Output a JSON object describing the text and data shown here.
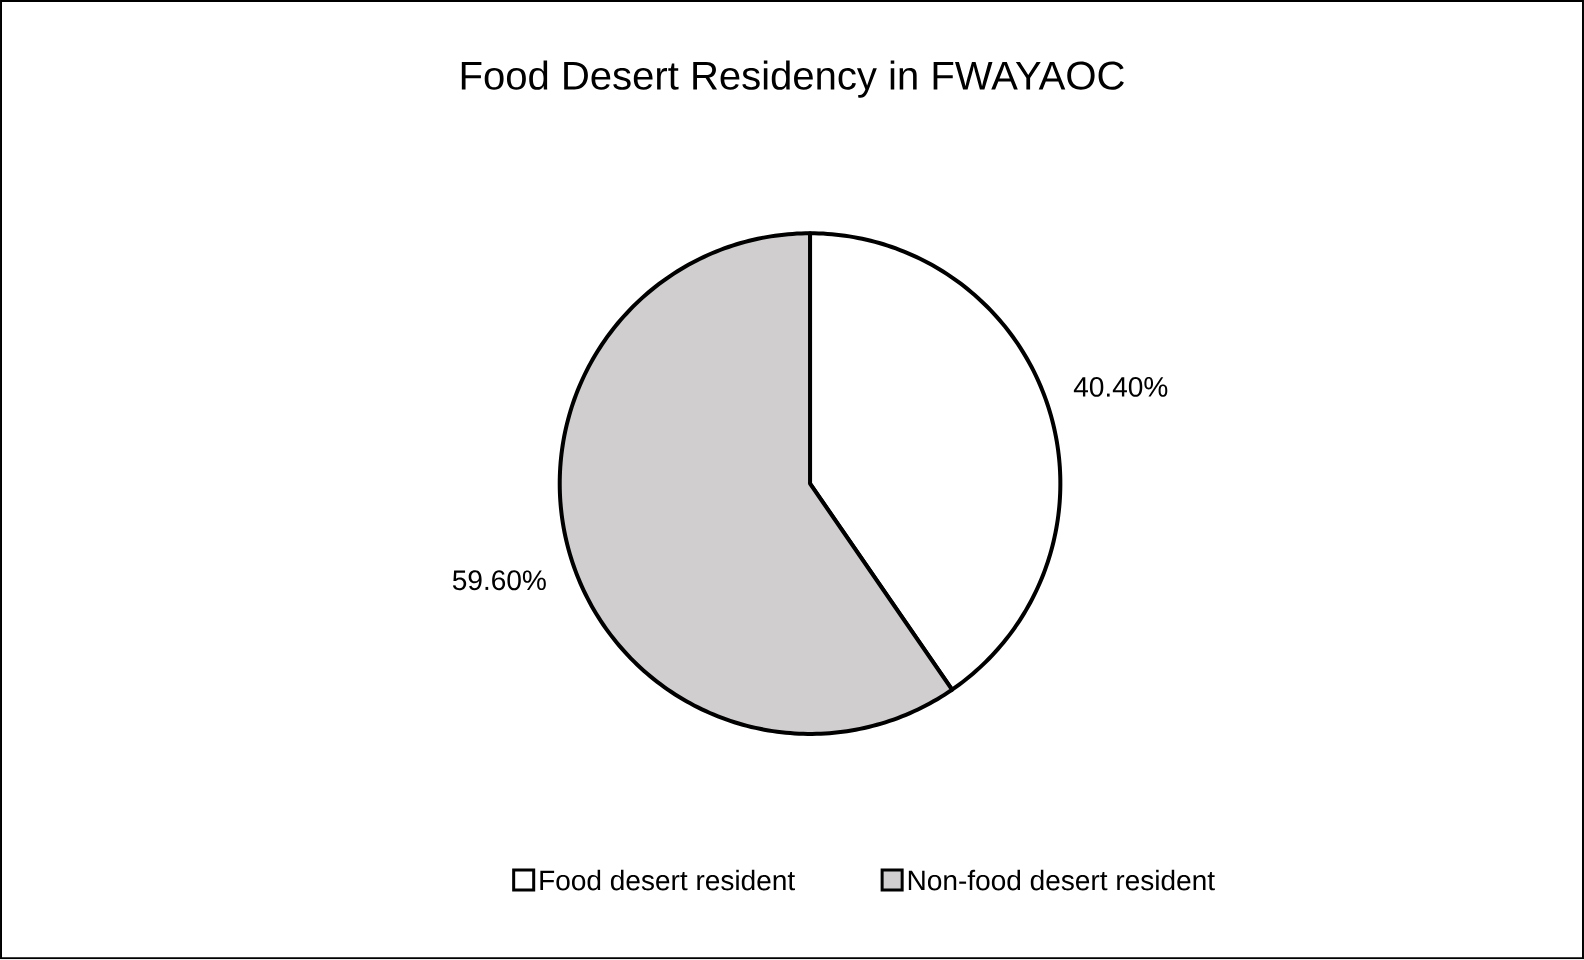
{
  "chart_data": {
    "type": "pie",
    "title": "Food Desert Residency in FWAYAOC",
    "categories": [
      "Food desert resident",
      "Non-food desert resident"
    ],
    "values": [
      40.4,
      59.6
    ],
    "value_labels": [
      "40.40%",
      "59.60%"
    ],
    "colors": [
      "#ffffff",
      "#d0cece"
    ],
    "legend": "bottom"
  }
}
